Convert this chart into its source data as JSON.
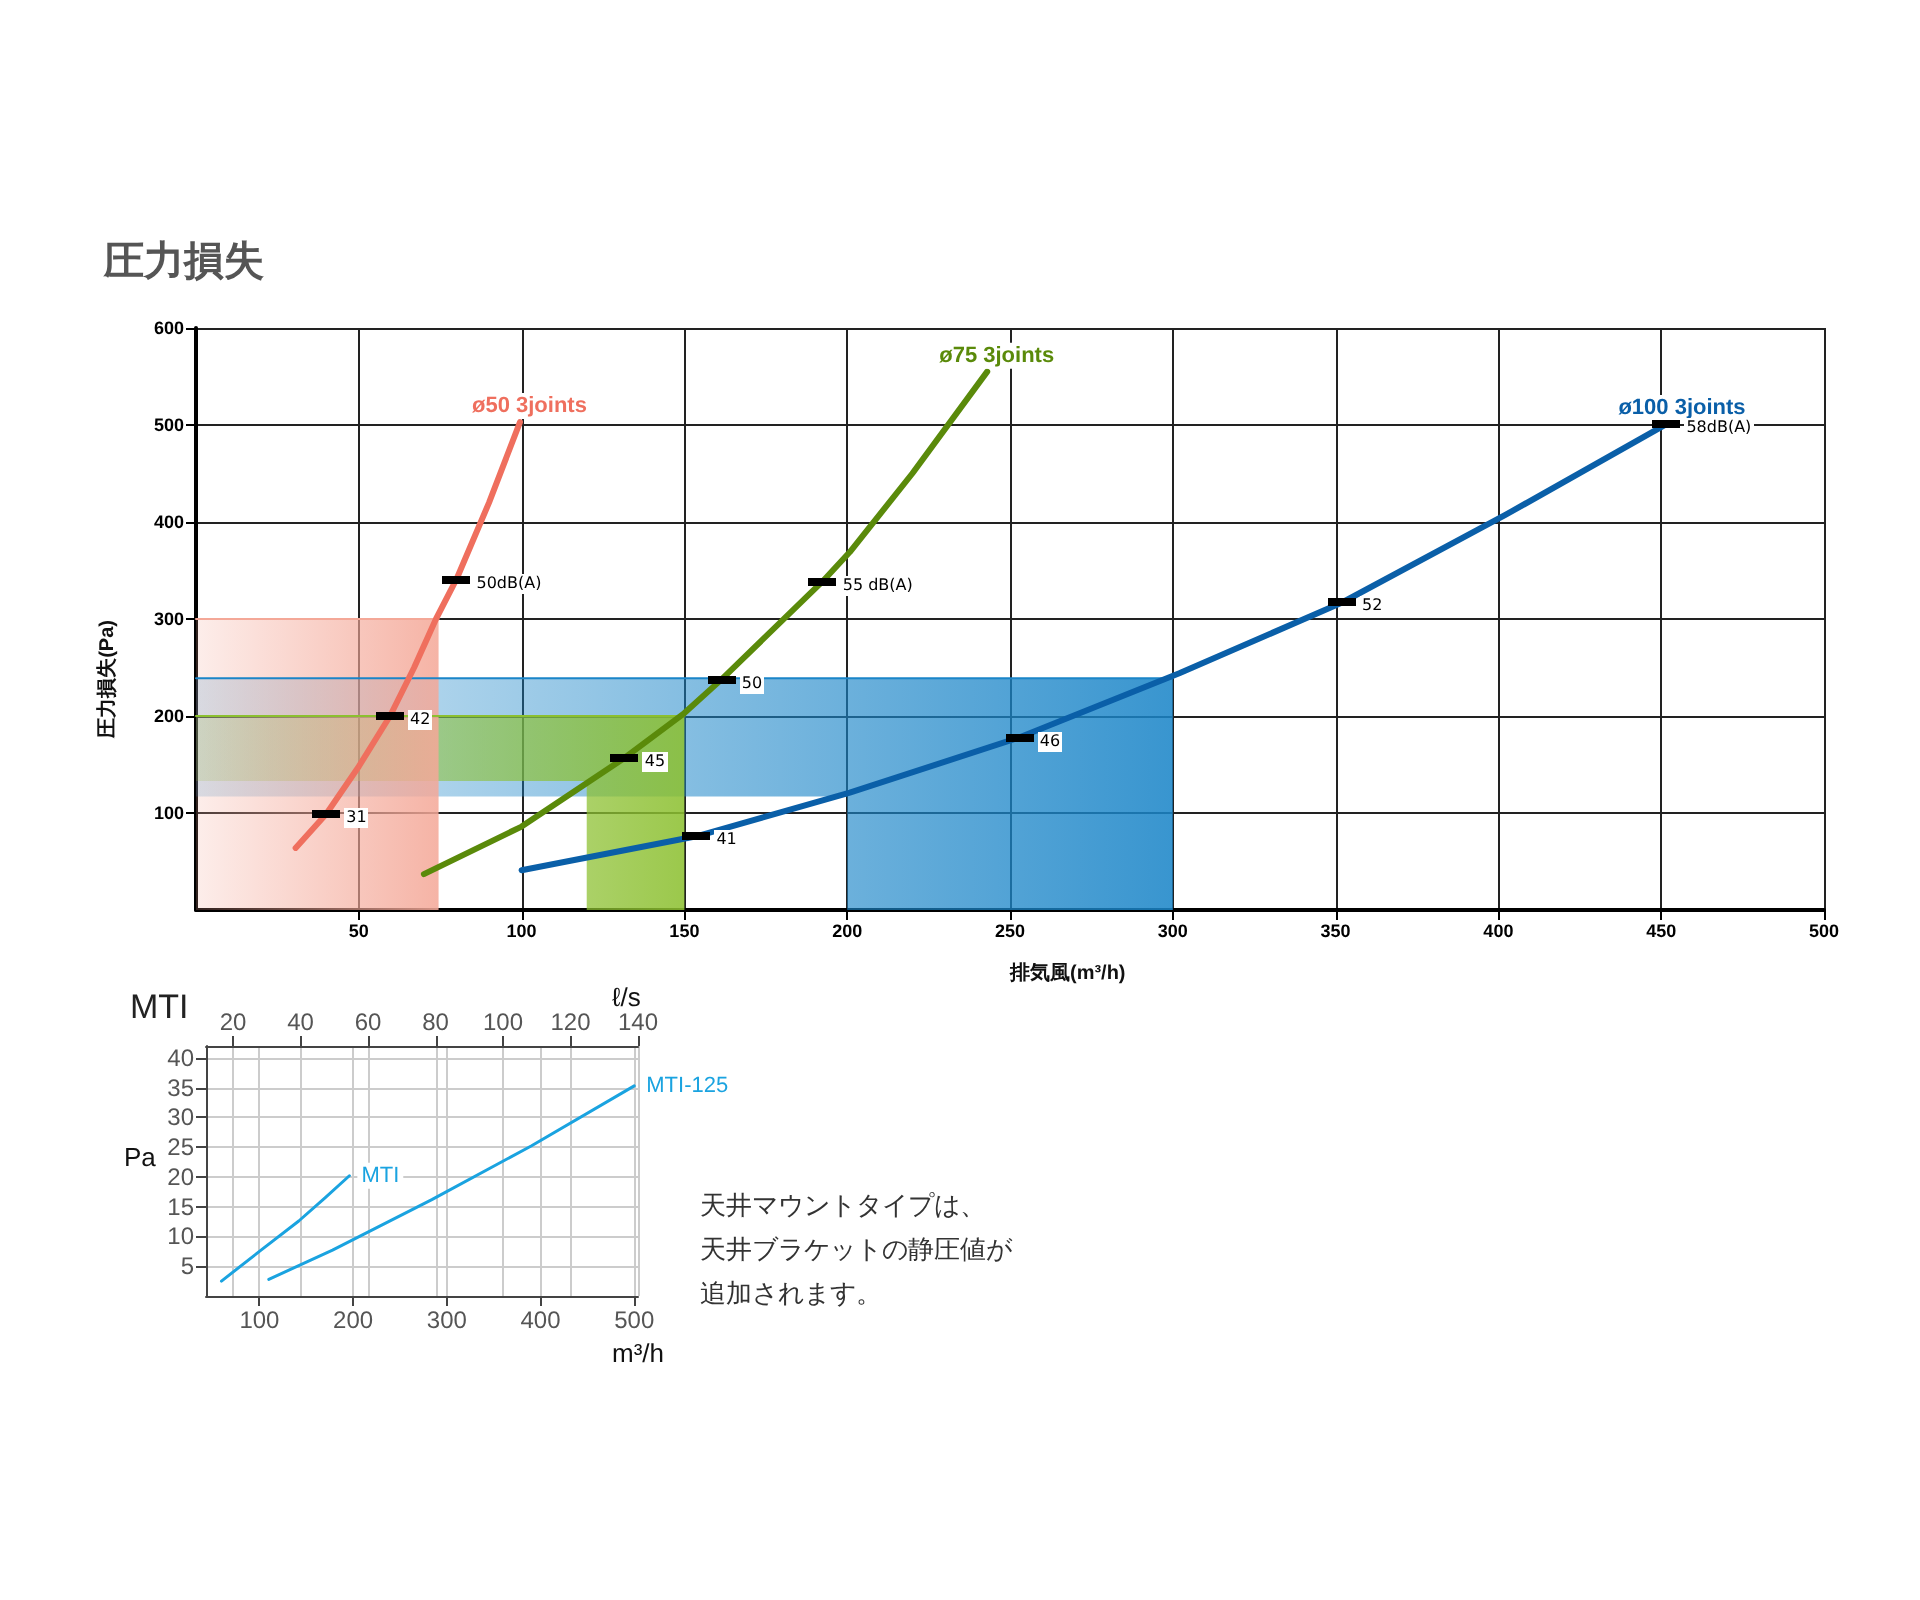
{
  "chart_data": [
    {
      "type": "line",
      "title": "圧力損失",
      "xlabel": "排気風(m³/h)",
      "ylabel": "圧力損失(Pa)",
      "xlim": [
        0,
        500
      ],
      "ylim": [
        0,
        600
      ],
      "xticks": [
        50,
        100,
        150,
        200,
        250,
        300,
        350,
        400,
        450,
        500
      ],
      "yticks": [
        100,
        200,
        300,
        400,
        500,
        600
      ],
      "grid": true,
      "marker": "none",
      "annotations": [
        {
          "text": "31",
          "x": 40,
          "y": 99
        },
        {
          "text": "42",
          "x": 59.6,
          "y": 200
        },
        {
          "text": "50dB(A)",
          "x": 80,
          "y": 341
        },
        {
          "text": "45",
          "x": 131.7,
          "y": 157
        },
        {
          "text": "50",
          "x": 161.5,
          "y": 238
        },
        {
          "text": "55 dB(A)",
          "x": 192.5,
          "y": 339
        },
        {
          "text": "41",
          "x": 153.7,
          "y": 76
        },
        {
          "text": "46",
          "x": 253,
          "y": 178
        },
        {
          "text": "52",
          "x": 352,
          "y": 317
        },
        {
          "text": "58dB(A)",
          "x": 451.6,
          "y": 501
        }
      ],
      "series": [
        {
          "type": "line",
          "color": "#1a85c8",
          "x": [
            0,
            200,
            200,
            300
          ],
          "values": [
            239,
            239,
            239,
            239
          ],
          "upper": [
            239,
            239,
            239,
            239
          ],
          "lower": [
            117,
            117,
            0,
            0
          ]
        },
        {
          "type": "line",
          "color": "#8cc030",
          "x": [
            0,
            120,
            120,
            150
          ],
          "values": [
            200,
            200,
            200,
            200
          ],
          "upper": [
            200,
            200,
            200,
            200
          ],
          "lower": [
            133,
            133,
            0,
            0
          ]
        },
        {
          "type": "line",
          "color": "#f4a898",
          "x": [
            0,
            74.5
          ],
          "values": [
            300,
            300
          ],
          "upper": [
            300,
            300
          ],
          "lower": [
            0,
            0
          ]
        },
        {
          "name": "ø50 3joints",
          "color": "#ef6f5e",
          "x": [
            30.6,
            40,
            50,
            59.6,
            67,
            73.7,
            80,
            90,
            99.5
          ],
          "values": [
            64,
            99,
            148,
            200,
            250,
            300,
            341,
            420,
            503
          ]
        },
        {
          "name": "ø75 3joints",
          "color": "#5a8a0a",
          "x": [
            70,
            100,
            131.7,
            150,
            161.5,
            192.5,
            200.8,
            220,
            243
          ],
          "values": [
            37,
            86,
            157,
            203,
            238,
            339,
            369,
            450,
            555
          ]
        },
        {
          "name": "ø100 3joints",
          "color": "#0a5fa8",
          "x": [
            100,
            153.7,
            200.8,
            253,
            302,
            352,
            402,
            451.6
          ],
          "values": [
            41,
            76,
            121,
            178,
            244,
            317,
            407,
            501
          ]
        }
      ]
    },
    {
      "type": "line",
      "title": "MTI",
      "xlabel": "m³/h",
      "ylabel": "Pa",
      "x2label": "ℓ/s",
      "xlim": [
        43,
        504
      ],
      "ylim": [
        0,
        42
      ],
      "xticks": [
        100,
        200,
        300,
        400,
        500
      ],
      "x2lim": [
        12,
        140
      ],
      "x2ticks": [
        20,
        40,
        60,
        80,
        100,
        120,
        140
      ],
      "yticks": [
        5,
        10,
        15,
        20,
        25,
        30,
        35,
        40
      ],
      "grid": true,
      "marker": "none",
      "annotations": [
        "天井マウントタイプは、",
        "天井ブラケットの静圧値が",
        "追加されます。"
      ],
      "series": [
        {
          "name": "MTI",
          "color": "#1aa3e0",
          "x": [
            59.5,
            100,
            142,
            170,
            196
          ],
          "values": [
            2.5,
            7.5,
            12.6,
            16.5,
            20.2
          ]
        },
        {
          "name": "MTI-125",
          "color": "#1aa3e0",
          "x": [
            110,
            178,
            284,
            390,
            500
          ],
          "values": [
            2.8,
            7.7,
            16.2,
            25.2,
            35.3
          ]
        }
      ]
    }
  ]
}
